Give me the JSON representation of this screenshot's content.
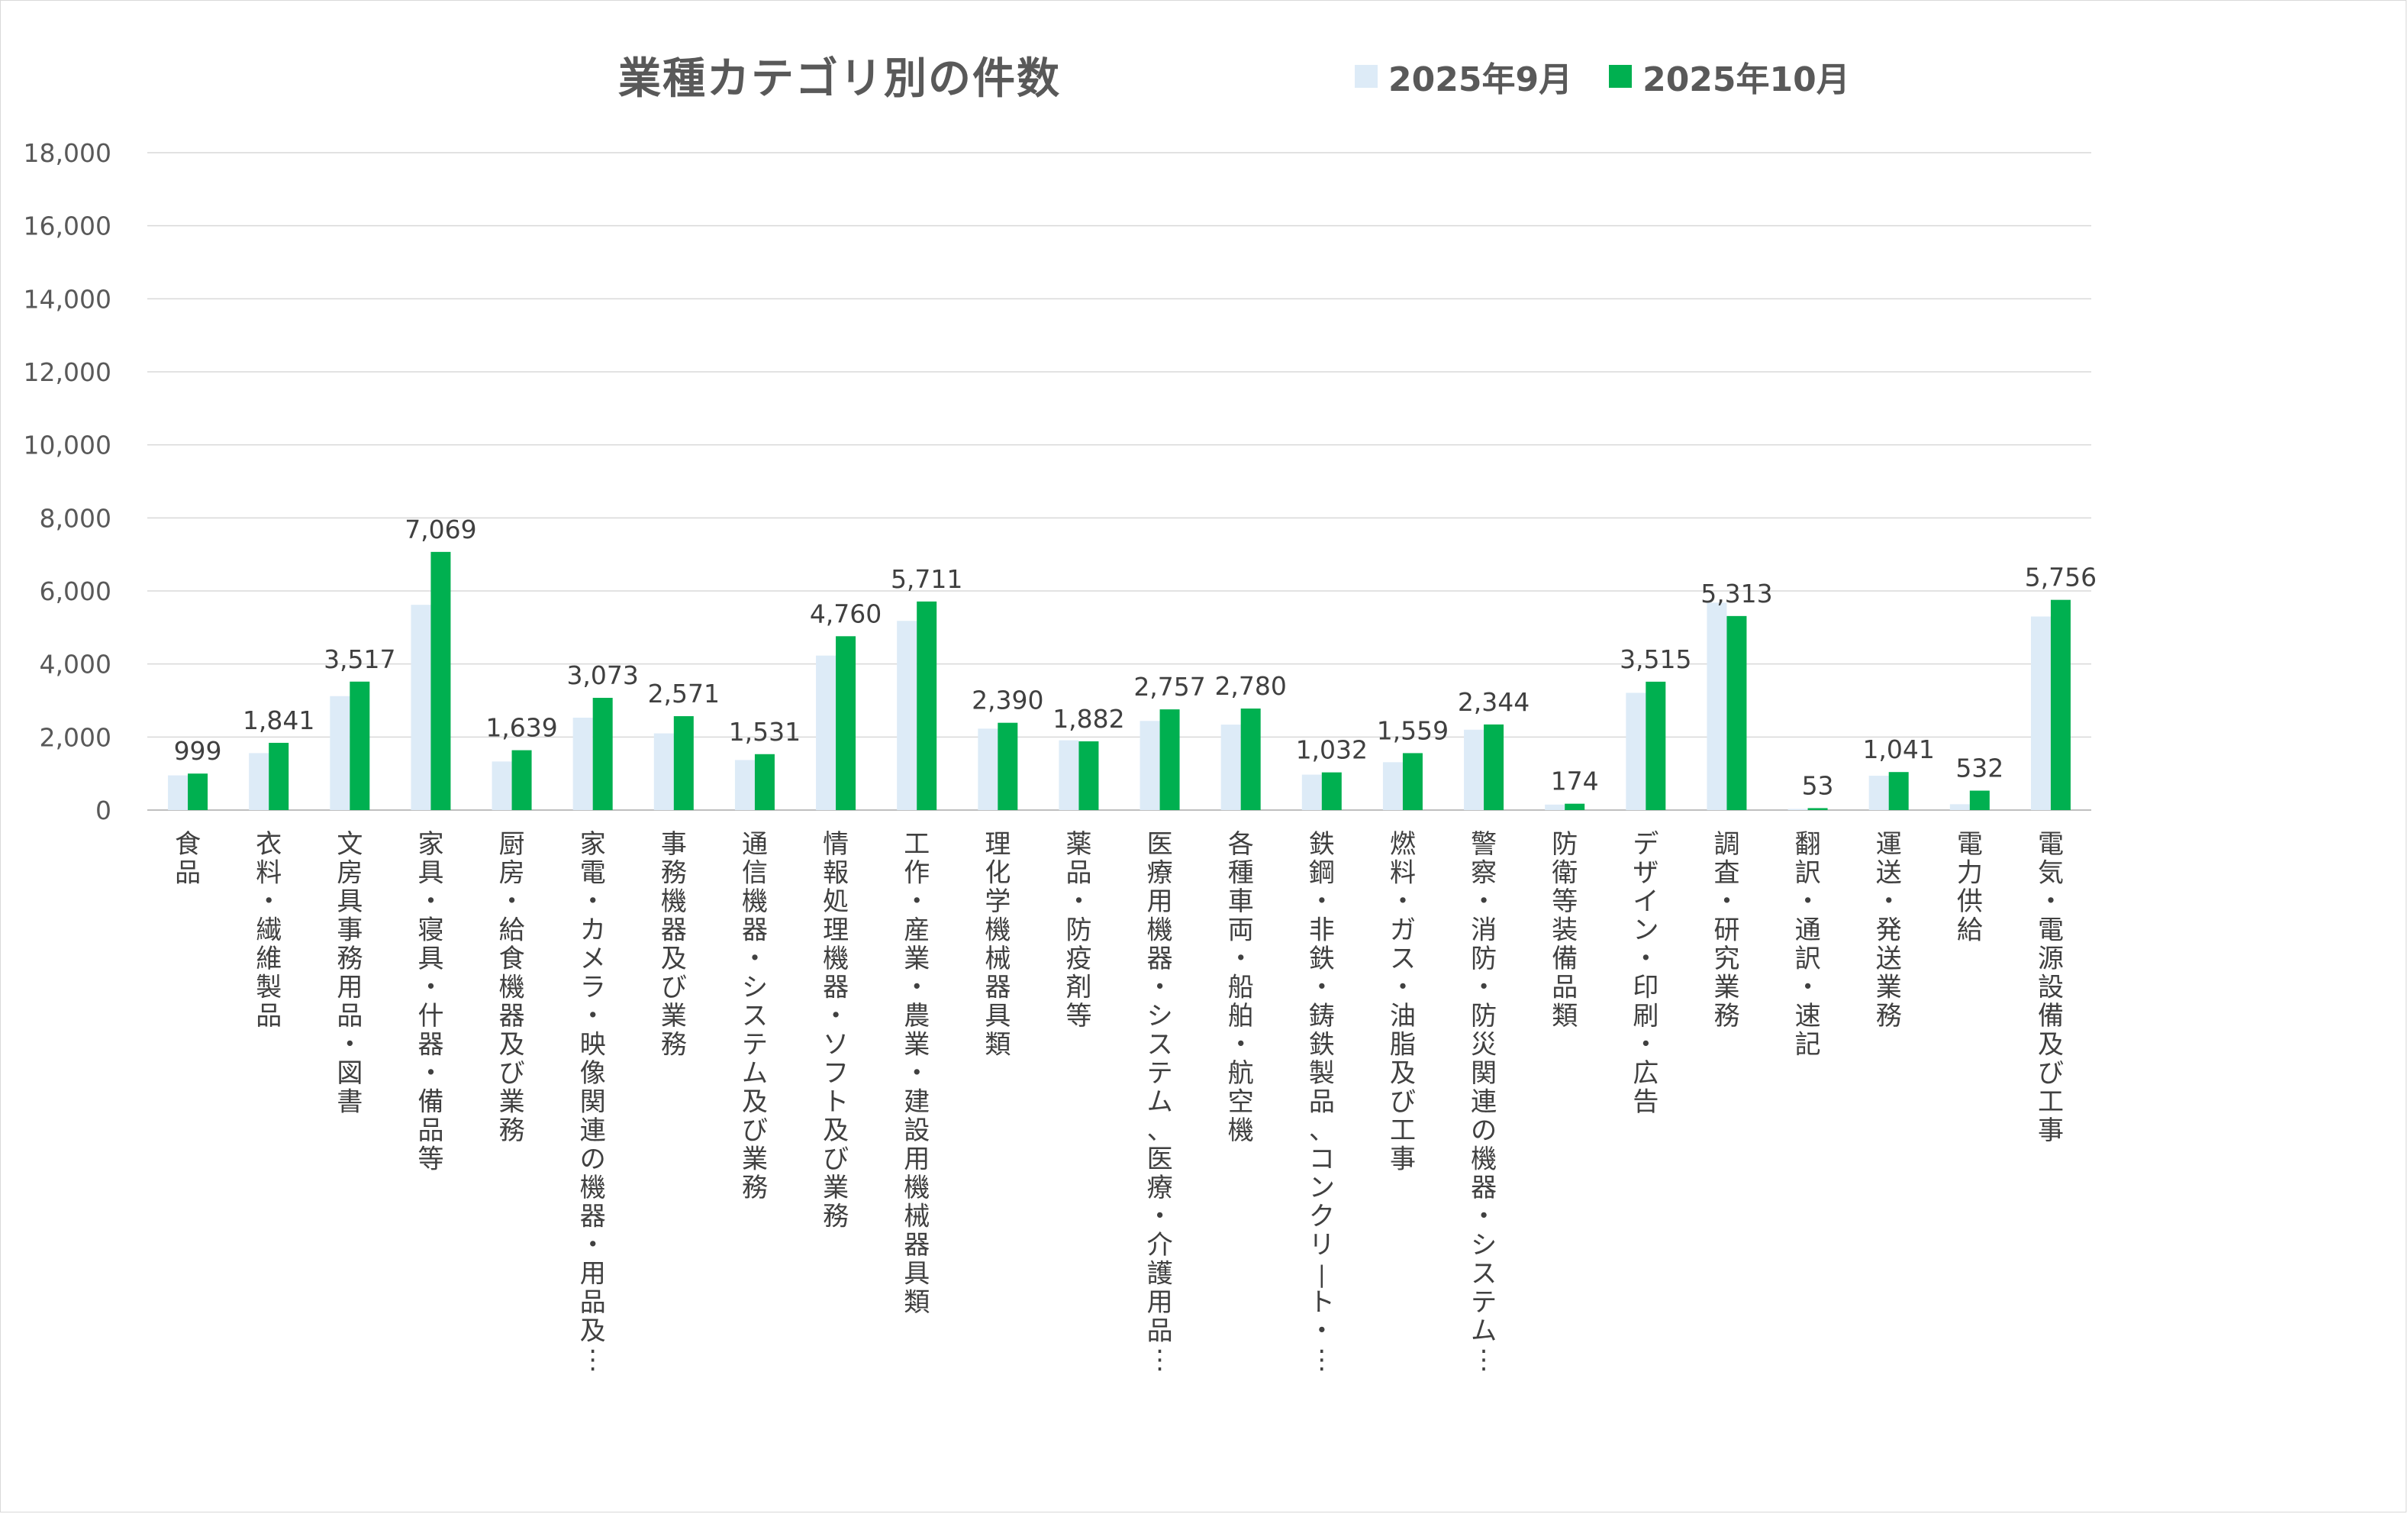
{
  "chart_data": {
    "type": "bar",
    "title": "業種カテゴリ別の件数",
    "xlabel": "",
    "ylabel": "",
    "ylim": [
      0,
      18000
    ],
    "yticks": [
      0,
      2000,
      4000,
      6000,
      8000,
      10000,
      12000,
      14000,
      16000,
      18000
    ],
    "ytick_labels": [
      "0",
      "2,000",
      "4,000",
      "6,000",
      "8,000",
      "10,000",
      "12,000",
      "14,000",
      "16,000",
      "18,000"
    ],
    "grid": true,
    "legend_position": "top-right",
    "categories": [
      "食品",
      "衣料・繊維製品",
      "文房具事務用品・図書",
      "家具・寝具・什器・備品等",
      "厨房・給食機器及び業務",
      "家電・カメラ・映像関連の機器・用品及…",
      "事務機器及び業務",
      "通信機器・システム及び業務",
      "情報処理機器・ソフト及び業務",
      "工作・産業・農業・建設用機械器具類",
      "理化学機械器具類",
      "薬品・防疫剤等",
      "医療用機器・システム、医療・介護用品…",
      "各種車両・船舶・航空機",
      "鉄鋼・非鉄・鋳鉄製品、コンクリート・…",
      "燃料・ガス・油脂及び工事",
      "警察・消防・防災関連の機器・システム…",
      "防衛等装備品類",
      "デザイン・印刷・広告",
      "調査・研究業務",
      "翻訳・通訳・速記",
      "運送・発送業務",
      "電力供給",
      "電気・電源設備及び工事"
    ],
    "series": [
      {
        "name": "2025年9月",
        "color": "#ddebf7",
        "values": [
          950,
          1560,
          3120,
          5620,
          1330,
          2530,
          2100,
          1370,
          4230,
          5180,
          2230,
          1910,
          2440,
          2340,
          970,
          1310,
          2200,
          150,
          3210,
          5680,
          30,
          940,
          160,
          5300
        ],
        "labels": [
          "",
          "",
          "",
          "",
          "",
          "",
          "",
          "",
          "",
          "",
          "",
          "",
          "",
          "",
          "",
          "",
          "",
          "",
          "",
          "",
          "",
          "",
          "",
          ""
        ]
      },
      {
        "name": "2025年10月",
        "color": "#00b050",
        "values": [
          999,
          1841,
          3517,
          7069,
          1639,
          3073,
          2571,
          1531,
          4760,
          5711,
          2390,
          1882,
          2757,
          2780,
          1032,
          1559,
          2344,
          174,
          3515,
          5313,
          53,
          1041,
          532,
          5756
        ],
        "labels": [
          "999",
          "1,841",
          "3,517",
          "7,069",
          "1,639",
          "3,073",
          "2,571",
          "1,531",
          "4,760",
          "5,711",
          "2,390",
          "1,882",
          "2,757",
          "2,780",
          "1,032",
          "1,559",
          "2,344",
          "174",
          "3,515",
          "5,313",
          "53",
          "1,041",
          "532",
          "5,756"
        ]
      }
    ]
  }
}
